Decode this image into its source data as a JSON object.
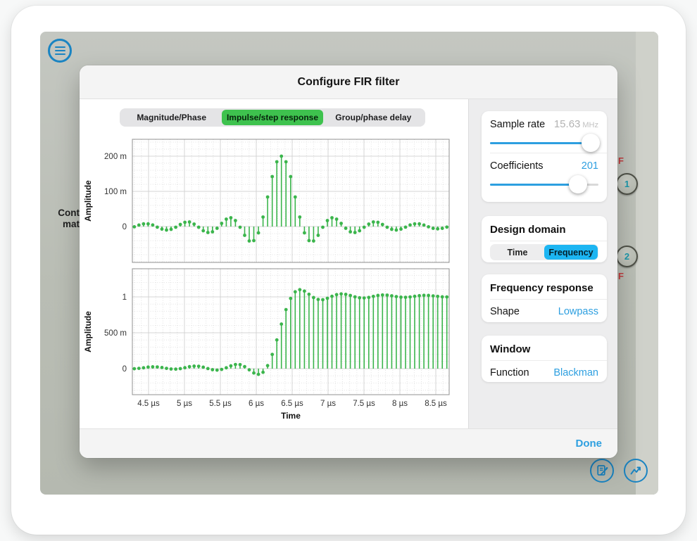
{
  "colors": {
    "accent_blue": "#2D9FE0",
    "segment_blue": "#1CB5F2",
    "tab_green": "#3EC24E",
    "stem_green": "#3BB54C",
    "connector_red": "#C23B3E",
    "connector_teal": "#1B98AC",
    "icon_blue": "#1A84C2"
  },
  "background": {
    "clipped_text": {
      "line1": "Cont",
      "line2": "mat"
    },
    "connectors": {
      "top_label": "F",
      "button1": "1",
      "button2": "2",
      "bottom_label": "F"
    },
    "fab_icons": [
      "notes-edit-icon",
      "signal-chart-icon"
    ]
  },
  "modal": {
    "title": "Configure FIR filter",
    "tabs": [
      {
        "label": "Magnitude/Phase",
        "selected": false
      },
      {
        "label": "Impulse/step response",
        "selected": true
      },
      {
        "label": "Group/phase delay",
        "selected": false
      }
    ],
    "footer": {
      "done_label": "Done"
    },
    "sidebar": {
      "sample_rate": {
        "label": "Sample rate",
        "value": "15.63",
        "unit": "MHz",
        "slider_pct": 93
      },
      "coefficients": {
        "label": "Coefficients",
        "value": "201",
        "slider_pct": 81
      },
      "design_domain": {
        "title": "Design domain",
        "options": [
          "Time",
          "Frequency"
        ],
        "selected": "Frequency"
      },
      "frequency_response": {
        "title": "Frequency response",
        "row": {
          "label": "Shape",
          "value": "Lowpass"
        }
      },
      "window": {
        "title": "Window",
        "row": {
          "label": "Function",
          "value": "Blackman"
        }
      }
    }
  },
  "chart_data": [
    {
      "type": "stem",
      "name": "impulse-response",
      "ylabel": "Amplitude",
      "x_start": 4.302,
      "dx": 0.064,
      "xlim": [
        4.2745,
        8.686
      ],
      "ylim": [
        -0.102,
        0.248
      ],
      "x_major_step": 0.5,
      "x_minor_step": 0.1,
      "y_minor_step": 0.02,
      "yticks": [
        {
          "v": 0,
          "label": "0"
        },
        {
          "v": 0.1,
          "label": "100 m"
        },
        {
          "v": 0.2,
          "label": "200 m"
        }
      ],
      "values": [
        -0.0008,
        0.0042,
        0.0076,
        0.0077,
        0.0043,
        -0.0017,
        -0.0074,
        -0.01,
        -0.008,
        -0.002,
        0.006,
        0.012,
        0.013,
        0.007,
        -0.002,
        -0.012,
        -0.017,
        -0.015,
        -0.005,
        0.009,
        0.021,
        0.025,
        0.017,
        -0.002,
        -0.025,
        -0.041,
        -0.04,
        -0.018,
        0.027,
        0.084,
        0.142,
        0.184,
        0.2,
        0.184,
        0.142,
        0.084,
        0.027,
        -0.018,
        -0.04,
        -0.041,
        -0.025,
        -0.002,
        0.017,
        0.025,
        0.021,
        0.009,
        -0.005,
        -0.015,
        -0.017,
        -0.012,
        -0.002,
        0.007,
        0.013,
        0.012,
        0.006,
        -0.002,
        -0.008,
        -0.01,
        -0.0074,
        -0.0017,
        0.0043,
        0.0077,
        0.0076,
        0.0042,
        -0.0008,
        -0.0051,
        -0.0066,
        -0.0052,
        -0.0015
      ]
    },
    {
      "type": "stem",
      "name": "step-response",
      "ylabel": "Amplitude",
      "xlabel": "Time",
      "x_start": 4.302,
      "dx": 0.064,
      "xlim": [
        4.2745,
        8.686
      ],
      "ylim": [
        -0.363,
        1.392
      ],
      "x_major_step": 0.5,
      "x_minor_step": 0.1,
      "y_minor_step": 0.1,
      "yticks": [
        {
          "v": 0,
          "label": "0"
        },
        {
          "v": 0.5,
          "label": "500 m"
        },
        {
          "v": 1,
          "label": "1"
        }
      ],
      "xticks": [
        {
          "v": 4.5,
          "label": "4.5 µs"
        },
        {
          "v": 5,
          "label": "5 µs"
        },
        {
          "v": 5.5,
          "label": "5.5 µs"
        },
        {
          "v": 6,
          "label": "6 µs"
        },
        {
          "v": 6.5,
          "label": "6.5 µs"
        },
        {
          "v": 7,
          "label": "7 µs"
        },
        {
          "v": 7.5,
          "label": "7.5 µs"
        },
        {
          "v": 8,
          "label": "8 µs"
        },
        {
          "v": 8.5,
          "label": "8.5 µs"
        }
      ],
      "values": [
        -0.001,
        0.004,
        0.012,
        0.021,
        0.025,
        0.023,
        0.015,
        0.004,
        -0.005,
        -0.007,
        0.0,
        0.013,
        0.027,
        0.035,
        0.033,
        0.02,
        0.001,
        -0.015,
        -0.021,
        -0.011,
        0.012,
        0.039,
        0.058,
        0.056,
        0.028,
        -0.017,
        -0.061,
        -0.08,
        -0.051,
        0.042,
        0.198,
        0.4,
        0.62,
        0.822,
        0.978,
        1.07,
        1.1,
        1.08,
        1.036,
        0.991,
        0.964,
        0.961,
        0.98,
        1.008,
        1.031,
        1.041,
        1.035,
        1.019,
        1.0,
        0.987,
        0.984,
        0.992,
        1.007,
        1.02,
        1.026,
        1.024,
        1.015,
        1.004,
        0.996,
        0.994,
        0.999,
        1.008,
        1.016,
        1.021,
        1.02,
        1.014,
        1.007,
        1.001,
        0.999
      ]
    }
  ]
}
